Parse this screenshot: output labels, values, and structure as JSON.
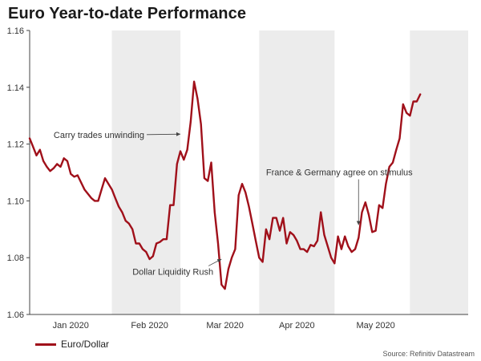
{
  "title": "Euro Year-to-date Performance",
  "source": "Source: Refinitiv Datastream",
  "colors": {
    "series": "#a0101a",
    "shade": "#ececec",
    "axis": "#444444"
  },
  "chart_data": {
    "type": "line",
    "xlim": [
      0,
      128
    ],
    "ylim": [
      1.06,
      1.16
    ],
    "yticks": [
      1.06,
      1.08,
      1.1,
      1.12,
      1.14,
      1.16
    ],
    "ytick_labels": [
      "1.06",
      "1.08",
      "1.10",
      "1.12",
      "1.14",
      "1.16"
    ],
    "xtick_labels": [
      {
        "label": "Jan 2020",
        "x": 12
      },
      {
        "label": "Feb 2020",
        "x": 35
      },
      {
        "label": "Mar 2020",
        "x": 57
      },
      {
        "label": "Apr 2020",
        "x": 78
      },
      {
        "label": "May 2020",
        "x": 101
      }
    ],
    "shaded_ranges": [
      [
        24,
        44
      ],
      [
        67,
        89
      ],
      [
        111,
        128
      ]
    ],
    "grid": false,
    "legend_position": "bottom-left",
    "series": [
      {
        "name": "Euro/Dollar",
        "points": [
          [
            0,
            1.122
          ],
          [
            1,
            1.119
          ],
          [
            2,
            1.116
          ],
          [
            3,
            1.118
          ],
          [
            4,
            1.114
          ],
          [
            5,
            1.112
          ],
          [
            6,
            1.1105
          ],
          [
            7,
            1.1115
          ],
          [
            8,
            1.113
          ],
          [
            9,
            1.112
          ],
          [
            10,
            1.115
          ],
          [
            11,
            1.114
          ],
          [
            12,
            1.1095
          ],
          [
            13,
            1.1085
          ],
          [
            14,
            1.109
          ],
          [
            15,
            1.1065
          ],
          [
            16,
            1.104
          ],
          [
            17,
            1.1025
          ],
          [
            18,
            1.101
          ],
          [
            19,
            1.1
          ],
          [
            20,
            1.1
          ],
          [
            21,
            1.104
          ],
          [
            22,
            1.108
          ],
          [
            23,
            1.106
          ],
          [
            24,
            1.104
          ],
          [
            25,
            1.101
          ],
          [
            26,
            1.098
          ],
          [
            27,
            1.096
          ],
          [
            28,
            1.093
          ],
          [
            29,
            1.092
          ],
          [
            30,
            1.09
          ],
          [
            31,
            1.085
          ],
          [
            32,
            1.085
          ],
          [
            33,
            1.083
          ],
          [
            34,
            1.082
          ],
          [
            35,
            1.0795
          ],
          [
            36,
            1.0805
          ],
          [
            37,
            1.085
          ],
          [
            38,
            1.0855
          ],
          [
            39,
            1.0865
          ],
          [
            40,
            1.0865
          ],
          [
            41,
            1.0985
          ],
          [
            42,
            1.0985
          ],
          [
            43,
            1.113
          ],
          [
            44,
            1.1175
          ],
          [
            45,
            1.1145
          ],
          [
            46,
            1.118
          ],
          [
            47,
            1.128
          ],
          [
            48,
            1.142
          ],
          [
            49,
            1.136
          ],
          [
            50,
            1.127
          ],
          [
            51,
            1.108
          ],
          [
            52,
            1.107
          ],
          [
            53,
            1.1135
          ],
          [
            54,
            1.096
          ],
          [
            55,
            1.085
          ],
          [
            56,
            1.0705
          ],
          [
            57,
            1.069
          ],
          [
            58,
            1.076
          ],
          [
            59,
            1.08
          ],
          [
            60,
            1.083
          ],
          [
            61,
            1.102
          ],
          [
            62,
            1.106
          ],
          [
            63,
            1.103
          ],
          [
            64,
            1.098
          ],
          [
            65,
            1.092
          ],
          [
            66,
            1.086
          ],
          [
            67,
            1.08
          ],
          [
            68,
            1.0785
          ],
          [
            69,
            1.09
          ],
          [
            70,
            1.0865
          ],
          [
            71,
            1.094
          ],
          [
            72,
            1.094
          ],
          [
            73,
            1.0895
          ],
          [
            74,
            1.094
          ],
          [
            75,
            1.085
          ],
          [
            76,
            1.089
          ],
          [
            77,
            1.088
          ],
          [
            78,
            1.086
          ],
          [
            79,
            1.083
          ],
          [
            80,
            1.083
          ],
          [
            81,
            1.082
          ],
          [
            82,
            1.0845
          ],
          [
            83,
            1.084
          ],
          [
            84,
            1.086
          ],
          [
            85,
            1.096
          ],
          [
            86,
            1.088
          ],
          [
            87,
            1.084
          ],
          [
            88,
            1.08
          ],
          [
            89,
            1.078
          ],
          [
            90,
            1.0875
          ],
          [
            91,
            1.083
          ],
          [
            92,
            1.0875
          ],
          [
            93,
            1.084
          ],
          [
            94,
            1.082
          ],
          [
            95,
            1.083
          ],
          [
            96,
            1.087
          ],
          [
            97,
            1.096
          ],
          [
            98,
            1.0995
          ],
          [
            99,
            1.095
          ],
          [
            100,
            1.089
          ],
          [
            101,
            1.0895
          ],
          [
            102,
            1.0985
          ],
          [
            103,
            1.0975
          ],
          [
            104,
            1.106
          ],
          [
            105,
            1.112
          ],
          [
            106,
            1.1135
          ],
          [
            107,
            1.118
          ],
          [
            108,
            1.122
          ],
          [
            109,
            1.134
          ],
          [
            110,
            1.131
          ],
          [
            111,
            1.13
          ],
          [
            112,
            1.135
          ],
          [
            113,
            1.135
          ],
          [
            114,
            1.1375
          ]
        ]
      }
    ],
    "annotations": [
      {
        "text": "Carry trades unwinding",
        "x": 7,
        "y": 1.1222,
        "arrow_to": [
          44,
          1.1235
        ]
      },
      {
        "text": "Dollar Liquidity Rush",
        "x": 30,
        "y": 1.074,
        "arrow_to": [
          56,
          1.0795
        ]
      },
      {
        "text": "France & Germany agree on stimulus",
        "x": 69,
        "y": 1.109,
        "arrow_to": [
          96,
          1.0915
        ]
      }
    ]
  }
}
